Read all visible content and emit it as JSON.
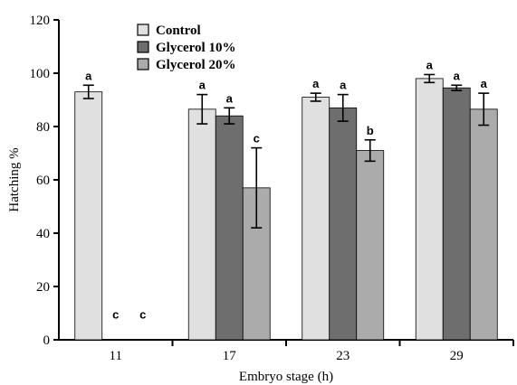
{
  "chart_data": {
    "type": "bar",
    "xlabel": "Embryo stage (h)",
    "ylabel": "Hatching %",
    "ylim": [
      0,
      120
    ],
    "yticks": [
      0,
      20,
      40,
      60,
      80,
      100,
      120
    ],
    "categories": [
      "11",
      "17",
      "23",
      "29"
    ],
    "series": [
      {
        "name": "Control",
        "color": "#e0e0e0",
        "values": [
          93,
          86.5,
          91,
          98
        ],
        "errors": [
          2.5,
          5.5,
          1.5,
          1.5
        ],
        "letters": [
          "a",
          "a",
          "a",
          "a"
        ]
      },
      {
        "name": "Glycerol 10%",
        "color": "#6e6e6e",
        "values": [
          0,
          84,
          87,
          94.5
        ],
        "errors": [
          0,
          3,
          5,
          1
        ],
        "letters": [
          "c",
          "a",
          "a",
          "a"
        ]
      },
      {
        "name": "Glycerol 20%",
        "color": "#ababab",
        "values": [
          0,
          57,
          71,
          86.5
        ],
        "errors": [
          0,
          15,
          4,
          6
        ],
        "letters": [
          "c",
          "c",
          "b",
          "a"
        ]
      }
    ],
    "legend_position": "top-left"
  }
}
